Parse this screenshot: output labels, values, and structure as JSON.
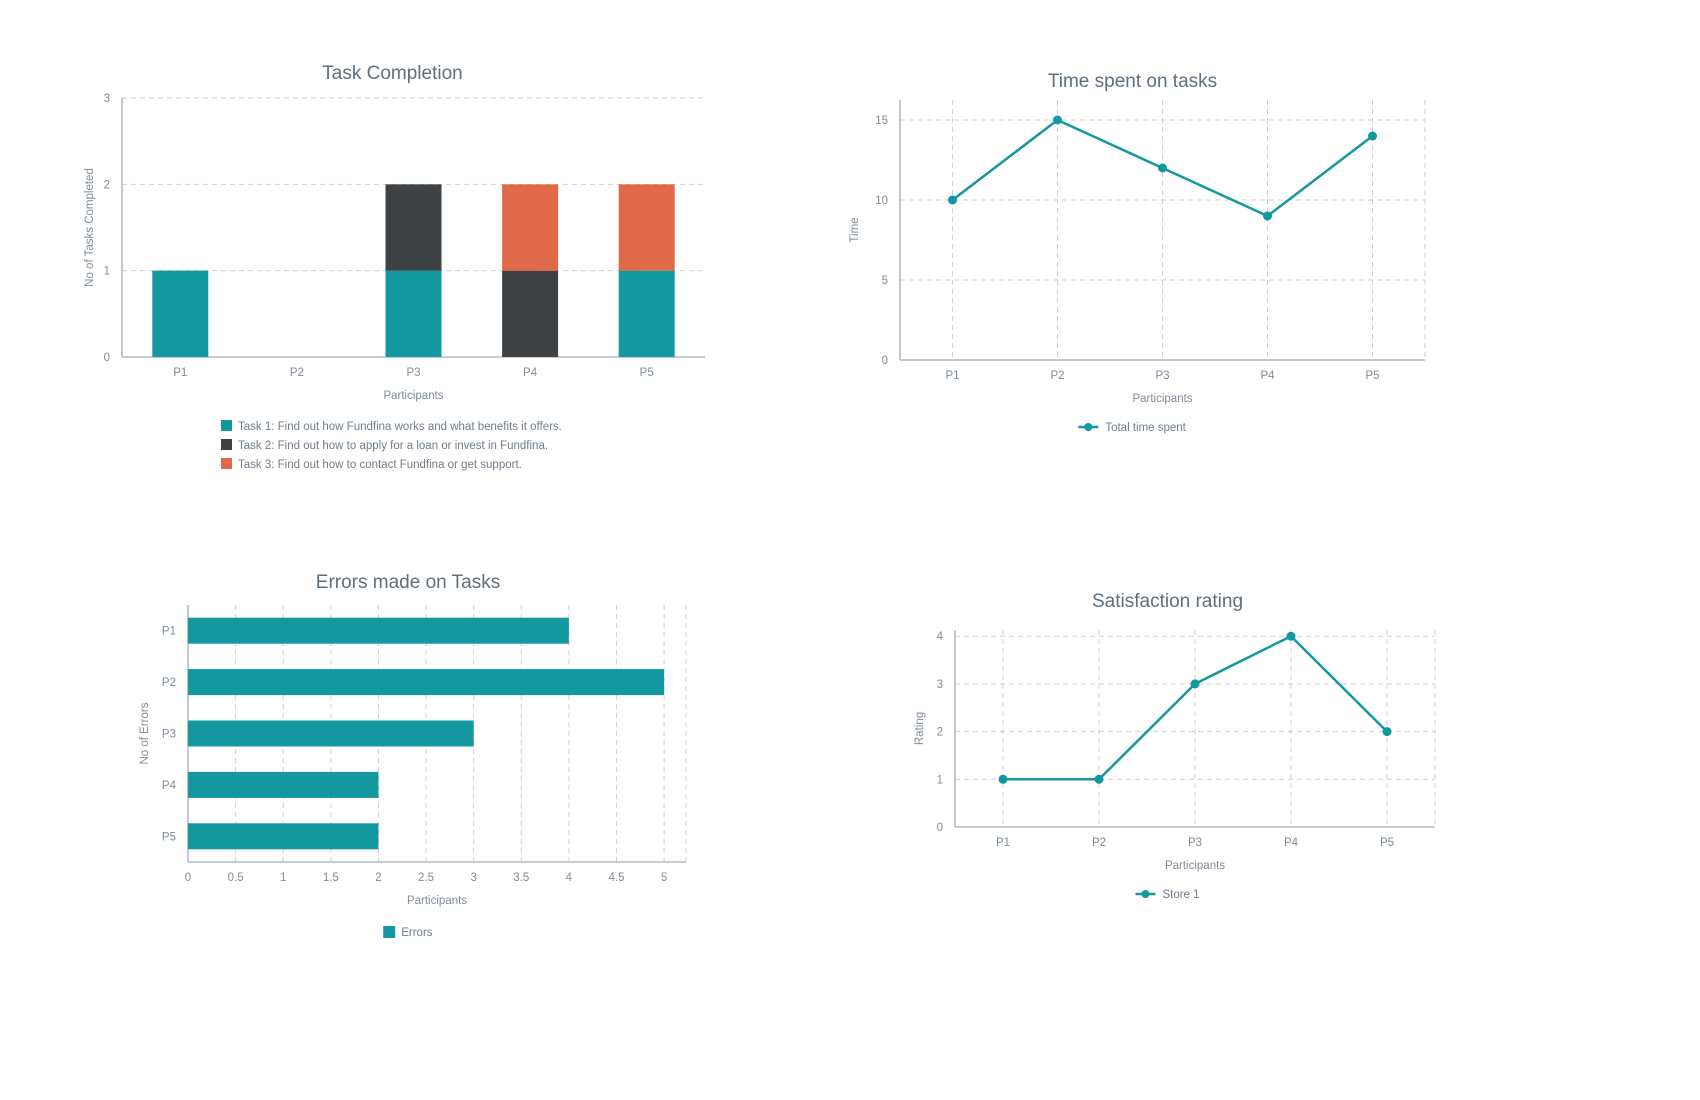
{
  "page": {
    "background": "#ffffff"
  },
  "colors": {
    "teal": "#12989E",
    "dark": "#3E4244",
    "orange": "#E06949",
    "axis": "#b3bcc3",
    "grid": "#cbd0d5",
    "tick_text": "#7f8c99",
    "title_text": "#5f6f7e",
    "legend_text": "#6f7d8a"
  },
  "chart_data": [
    {
      "id": "task-completion",
      "type": "stacked-bar",
      "title": "Task Completion",
      "xlabel": "Participants",
      "ylabel": "No of Tasks Completed",
      "categories": [
        "P1",
        "P2",
        "P3",
        "P4",
        "P5"
      ],
      "ylim": [
        0,
        3
      ],
      "yticks": [
        0,
        1,
        2,
        3
      ],
      "grid": "horizontal-dashed",
      "legend_position": "bottom-left-rows",
      "series": [
        {
          "name": "Task 1: Find out how Fundfina works and what benefits it offers.",
          "color": "#12989E",
          "values": [
            1,
            0,
            1,
            0,
            1
          ]
        },
        {
          "name": "Task 2: Find out how to apply for a loan or invest in Fundfina.",
          "color": "#3E4244",
          "values": [
            0,
            0,
            1,
            1,
            0
          ]
        },
        {
          "name": "Task 3: Find out how to contact Fundfina or get support.",
          "color": "#E06949",
          "values": [
            0,
            0,
            0,
            1,
            1
          ]
        }
      ]
    },
    {
      "id": "time-spent",
      "type": "line",
      "title": "Time spent on tasks",
      "xlabel": "Participants",
      "ylabel": "Time",
      "categories": [
        "P1",
        "P2",
        "P3",
        "P4",
        "P5"
      ],
      "ylim": [
        0,
        16.25
      ],
      "yticks": [
        0,
        5,
        10,
        15
      ],
      "grid": "both-dashed",
      "legend_position": "bottom-center",
      "series": [
        {
          "name": "Total time spent",
          "color": "#12989E",
          "values": [
            10,
            15,
            12,
            9,
            14
          ]
        }
      ]
    },
    {
      "id": "errors-made",
      "type": "horizontal-bar",
      "title": "Errors made on Tasks",
      "xlabel": "Participants",
      "ylabel": "No of Errors",
      "categories": [
        "P1",
        "P2",
        "P3",
        "P4",
        "P5"
      ],
      "xlim": [
        0,
        5.23
      ],
      "xticks": [
        0,
        0.5,
        1,
        1.5,
        2,
        2.5,
        3,
        3.5,
        4,
        4.5,
        5
      ],
      "grid": "vertical-dashed",
      "legend_position": "bottom-center",
      "series": [
        {
          "name": "Errors",
          "color": "#12989E",
          "values": [
            4,
            5,
            3,
            2,
            2
          ]
        }
      ]
    },
    {
      "id": "satisfaction-rating",
      "type": "line",
      "title": "Satisfaction rating",
      "xlabel": "Participants",
      "ylabel": "Rating",
      "categories": [
        "P1",
        "P2",
        "P3",
        "P4",
        "P5"
      ],
      "ylim": [
        0,
        4.13
      ],
      "yticks": [
        0,
        1,
        2,
        3,
        4
      ],
      "grid": "both-dashed",
      "legend_position": "bottom-center",
      "series": [
        {
          "name": "Store 1",
          "color": "#12989E",
          "values": [
            1,
            1,
            3,
            4,
            2
          ]
        }
      ]
    }
  ]
}
